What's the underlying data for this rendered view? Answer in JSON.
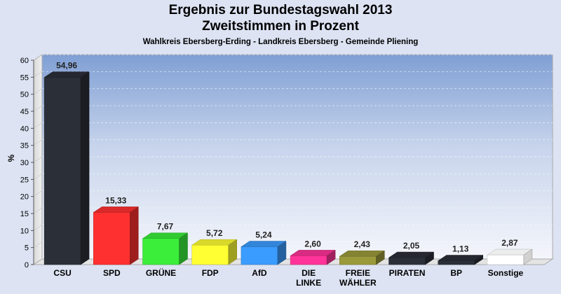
{
  "header": {
    "title_line1": "Ergebnis zur Bundestagswahl 2013",
    "title_line2": "Zweitstimmen in Prozent",
    "subtitle": "Wahlkreis Ebersberg-Erding - Landkreis Ebersberg - Gemeinde Pliening"
  },
  "chart_data": {
    "type": "bar",
    "title": "Ergebnis zur Bundestagswahl 2013 Zweitstimmen in Prozent",
    "subtitle": "Wahlkreis Ebersberg-Erding - Landkreis Ebersberg - Gemeinde Pliening",
    "ylabel": "%",
    "xlabel": "",
    "ylim": [
      0,
      60
    ],
    "yticks": [
      0,
      5,
      10,
      15,
      20,
      25,
      30,
      35,
      40,
      45,
      50,
      55,
      60
    ],
    "grid": true,
    "categories": [
      "CSU",
      "SPD",
      "GRÜNE",
      "FDP",
      "AfD",
      "DIE\nLINKE",
      "FREIE\nWÄHLER",
      "PIRATEN",
      "BP",
      "Sonstige"
    ],
    "values": [
      54.96,
      15.33,
      7.67,
      5.72,
      5.24,
      2.6,
      2.43,
      2.05,
      1.13,
      2.87
    ],
    "value_labels": [
      "54,96",
      "15,33",
      "7,67",
      "5,72",
      "5,24",
      "2,60",
      "2,43",
      "2,05",
      "1,13",
      "2,87"
    ],
    "colors": [
      "#2b2f38",
      "#ff3030",
      "#3aee3a",
      "#ffff33",
      "#3b9cff",
      "#ff3399",
      "#9a9a3a",
      "#2b2f38",
      "#2b2f38",
      "#ffffff"
    ]
  }
}
